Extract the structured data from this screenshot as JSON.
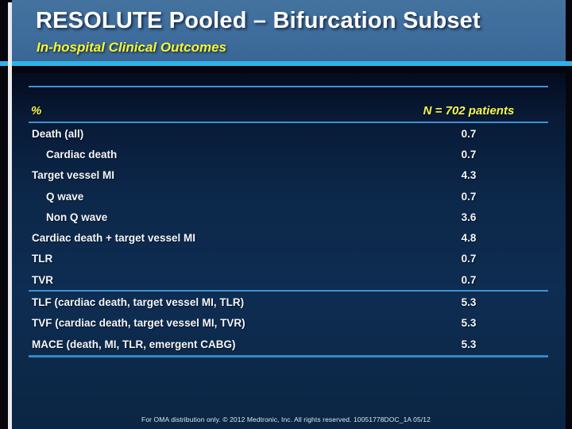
{
  "slide": {
    "title": "RESOLUTE Pooled – Bifurcation Subset",
    "subtitle": "In-hospital Clinical Outcomes"
  },
  "table": {
    "unit_header": "%",
    "n_header": "N = 702 patients",
    "rows": [
      {
        "label": "Death (all)",
        "value": "0.7",
        "indent": false
      },
      {
        "label": "Cardiac death",
        "value": "0.7",
        "indent": true
      },
      {
        "label": "Target vessel MI",
        "value": "4.3",
        "indent": false
      },
      {
        "label": "Q wave",
        "value": "0.7",
        "indent": true
      },
      {
        "label": "Non Q wave",
        "value": "3.6",
        "indent": true
      },
      {
        "label": "Cardiac death + target vessel MI",
        "value": "4.8",
        "indent": false
      },
      {
        "label": "TLR",
        "value": "0.7",
        "indent": false
      },
      {
        "label": "TVR",
        "value": "0.7",
        "indent": false,
        "separator_after": true
      },
      {
        "label": "TLF (cardiac death, target vessel MI, TLR)",
        "value": "5.3",
        "indent": false
      },
      {
        "label": "TVF (cardiac death, target vessel MI, TVR)",
        "value": "5.3",
        "indent": false
      },
      {
        "label": "MACE (death, MI, TLR, emergent CABG)",
        "value": "5.3",
        "indent": false
      }
    ]
  },
  "footer": {
    "text": "For OMA distribution only. © 2012 Medtronic, Inc. All rights reserved.  10051778DOC_1A 05/12"
  },
  "colors": {
    "header_blue": "#3e6c9c",
    "accent_cyan": "#2eb3e9",
    "accent_yellow": "#f8f847",
    "rule_blue": "#3e93d2",
    "body_navy": "#0e2d52",
    "text_white": "#f4f7fb"
  }
}
